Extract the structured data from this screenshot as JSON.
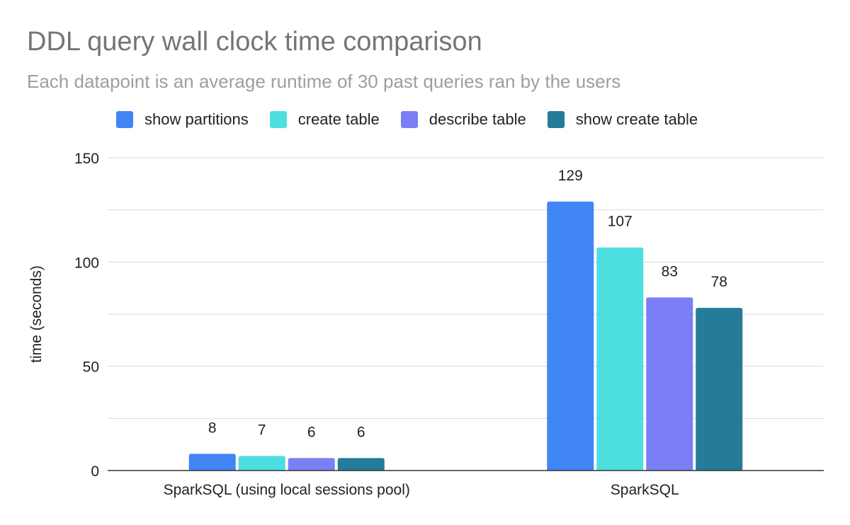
{
  "title": "DDL query wall clock time comparison",
  "subtitle": "Each datapoint is an average runtime of 30 past queries ran by the users",
  "chart_data": {
    "type": "bar",
    "title": "DDL query wall clock time comparison",
    "subtitle": "Each datapoint is an average runtime of 30 past queries ran by the users",
    "xlabel": "",
    "ylabel": "time (seconds)",
    "ylim": [
      0,
      150
    ],
    "yticks": [
      0,
      50,
      100,
      150
    ],
    "grid": true,
    "legend_position": "top",
    "categories": [
      "SparkSQL (using local sessions pool)",
      "SparkSQL"
    ],
    "series": [
      {
        "name": "show partitions",
        "color": "#4285f4",
        "values": [
          8,
          129
        ]
      },
      {
        "name": "create table",
        "color": "#4ddfdf",
        "values": [
          7,
          107
        ]
      },
      {
        "name": "describe table",
        "color": "#7b7ff5",
        "values": [
          6,
          83
        ]
      },
      {
        "name": "show create table",
        "color": "#247c9a",
        "values": [
          6,
          78
        ]
      }
    ]
  }
}
